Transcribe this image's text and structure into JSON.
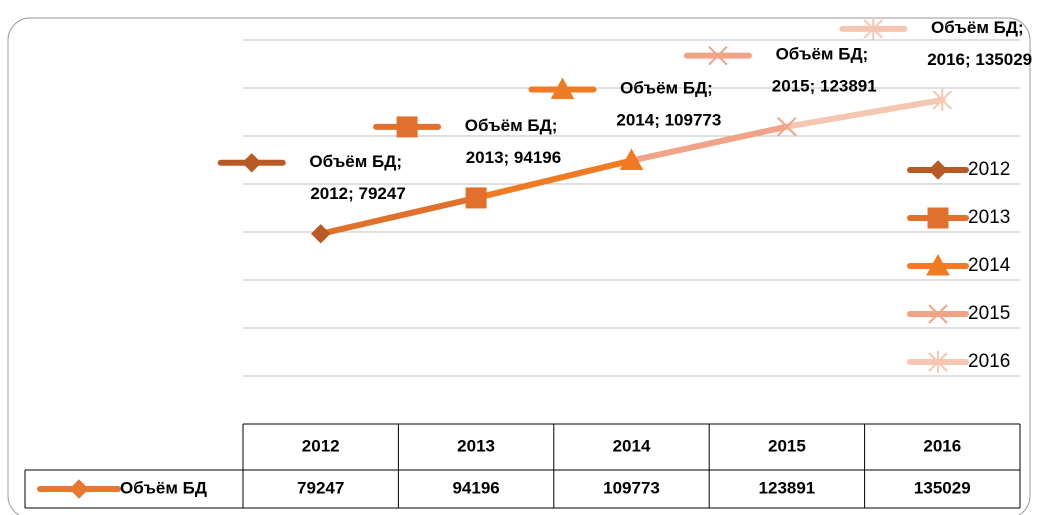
{
  "chart_data": {
    "type": "line",
    "categories": [
      "2012",
      "2013",
      "2014",
      "2015",
      "2016"
    ],
    "series": [
      {
        "name": "Объём БД",
        "color": "#e8782f",
        "values": [
          79247,
          94196,
          109773,
          123891,
          135029
        ],
        "value_labels": [
          "Объём БД; 2012; 79247",
          "Объём БД; 2013; 94196",
          "Объём БД; 2014; 109773",
          "Объём БД; 2015; 123891",
          "Объём БД; 2016; 135029"
        ],
        "point_colors": [
          "#b85a25",
          "#e0702c",
          "#f07b22",
          "#f0a386",
          "#f5c6b1"
        ],
        "markers": [
          "diamond",
          "square",
          "triangle",
          "x",
          "star"
        ]
      }
    ],
    "ylim": [
      0,
      160000
    ],
    "yticks": [
      20000,
      40000,
      60000,
      80000,
      100000,
      120000,
      140000,
      160000
    ],
    "grid": true,
    "legend": "right",
    "data_table": true
  }
}
